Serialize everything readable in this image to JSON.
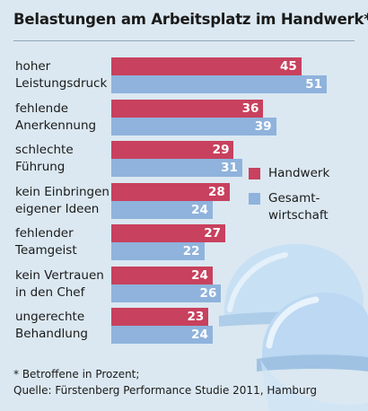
{
  "title": "Belastungen am Arbeitsplatz im Handwerk*",
  "colors": {
    "background": "#dbe8f1",
    "handwerk": "#c8415e",
    "gesamtwirtschaft": "#8fb3dc",
    "helmet": "#bcd8f2"
  },
  "decoration": {
    "helmet_icon": "hard-hat-icon"
  },
  "legend": [
    {
      "label": "Handwerk",
      "color": "#c8415e"
    },
    {
      "label": "Gesamt-\nwirtschaft",
      "color": "#8fb3dc"
    }
  ],
  "footnote": "* Betroffene in Prozent;\nQuelle: Fürstenberg Performance Studie 2011, Hamburg",
  "chart_data": {
    "type": "bar",
    "orientation": "horizontal",
    "title": "Belastungen am Arbeitsplatz im Handwerk*",
    "unit": "Prozent",
    "categories": [
      "hoher\nLeistungsdruck",
      "fehlende\nAnerkennung",
      "schlechte\nFührung",
      "kein Einbringen\neigener Ideen",
      "fehlender\nTeamgeist",
      "kein Vertrauen\nin den Chef",
      "ungerechte\nBehandlung"
    ],
    "series": [
      {
        "name": "Handwerk",
        "values": [
          45,
          36,
          29,
          28,
          27,
          24,
          23
        ]
      },
      {
        "name": "Gesamt-\nwirtschaft",
        "values": [
          51,
          39,
          31,
          24,
          22,
          26,
          24
        ]
      }
    ],
    "xlim": [
      0,
      51
    ],
    "grid": false,
    "data_labels": true,
    "legend_position": "right"
  }
}
